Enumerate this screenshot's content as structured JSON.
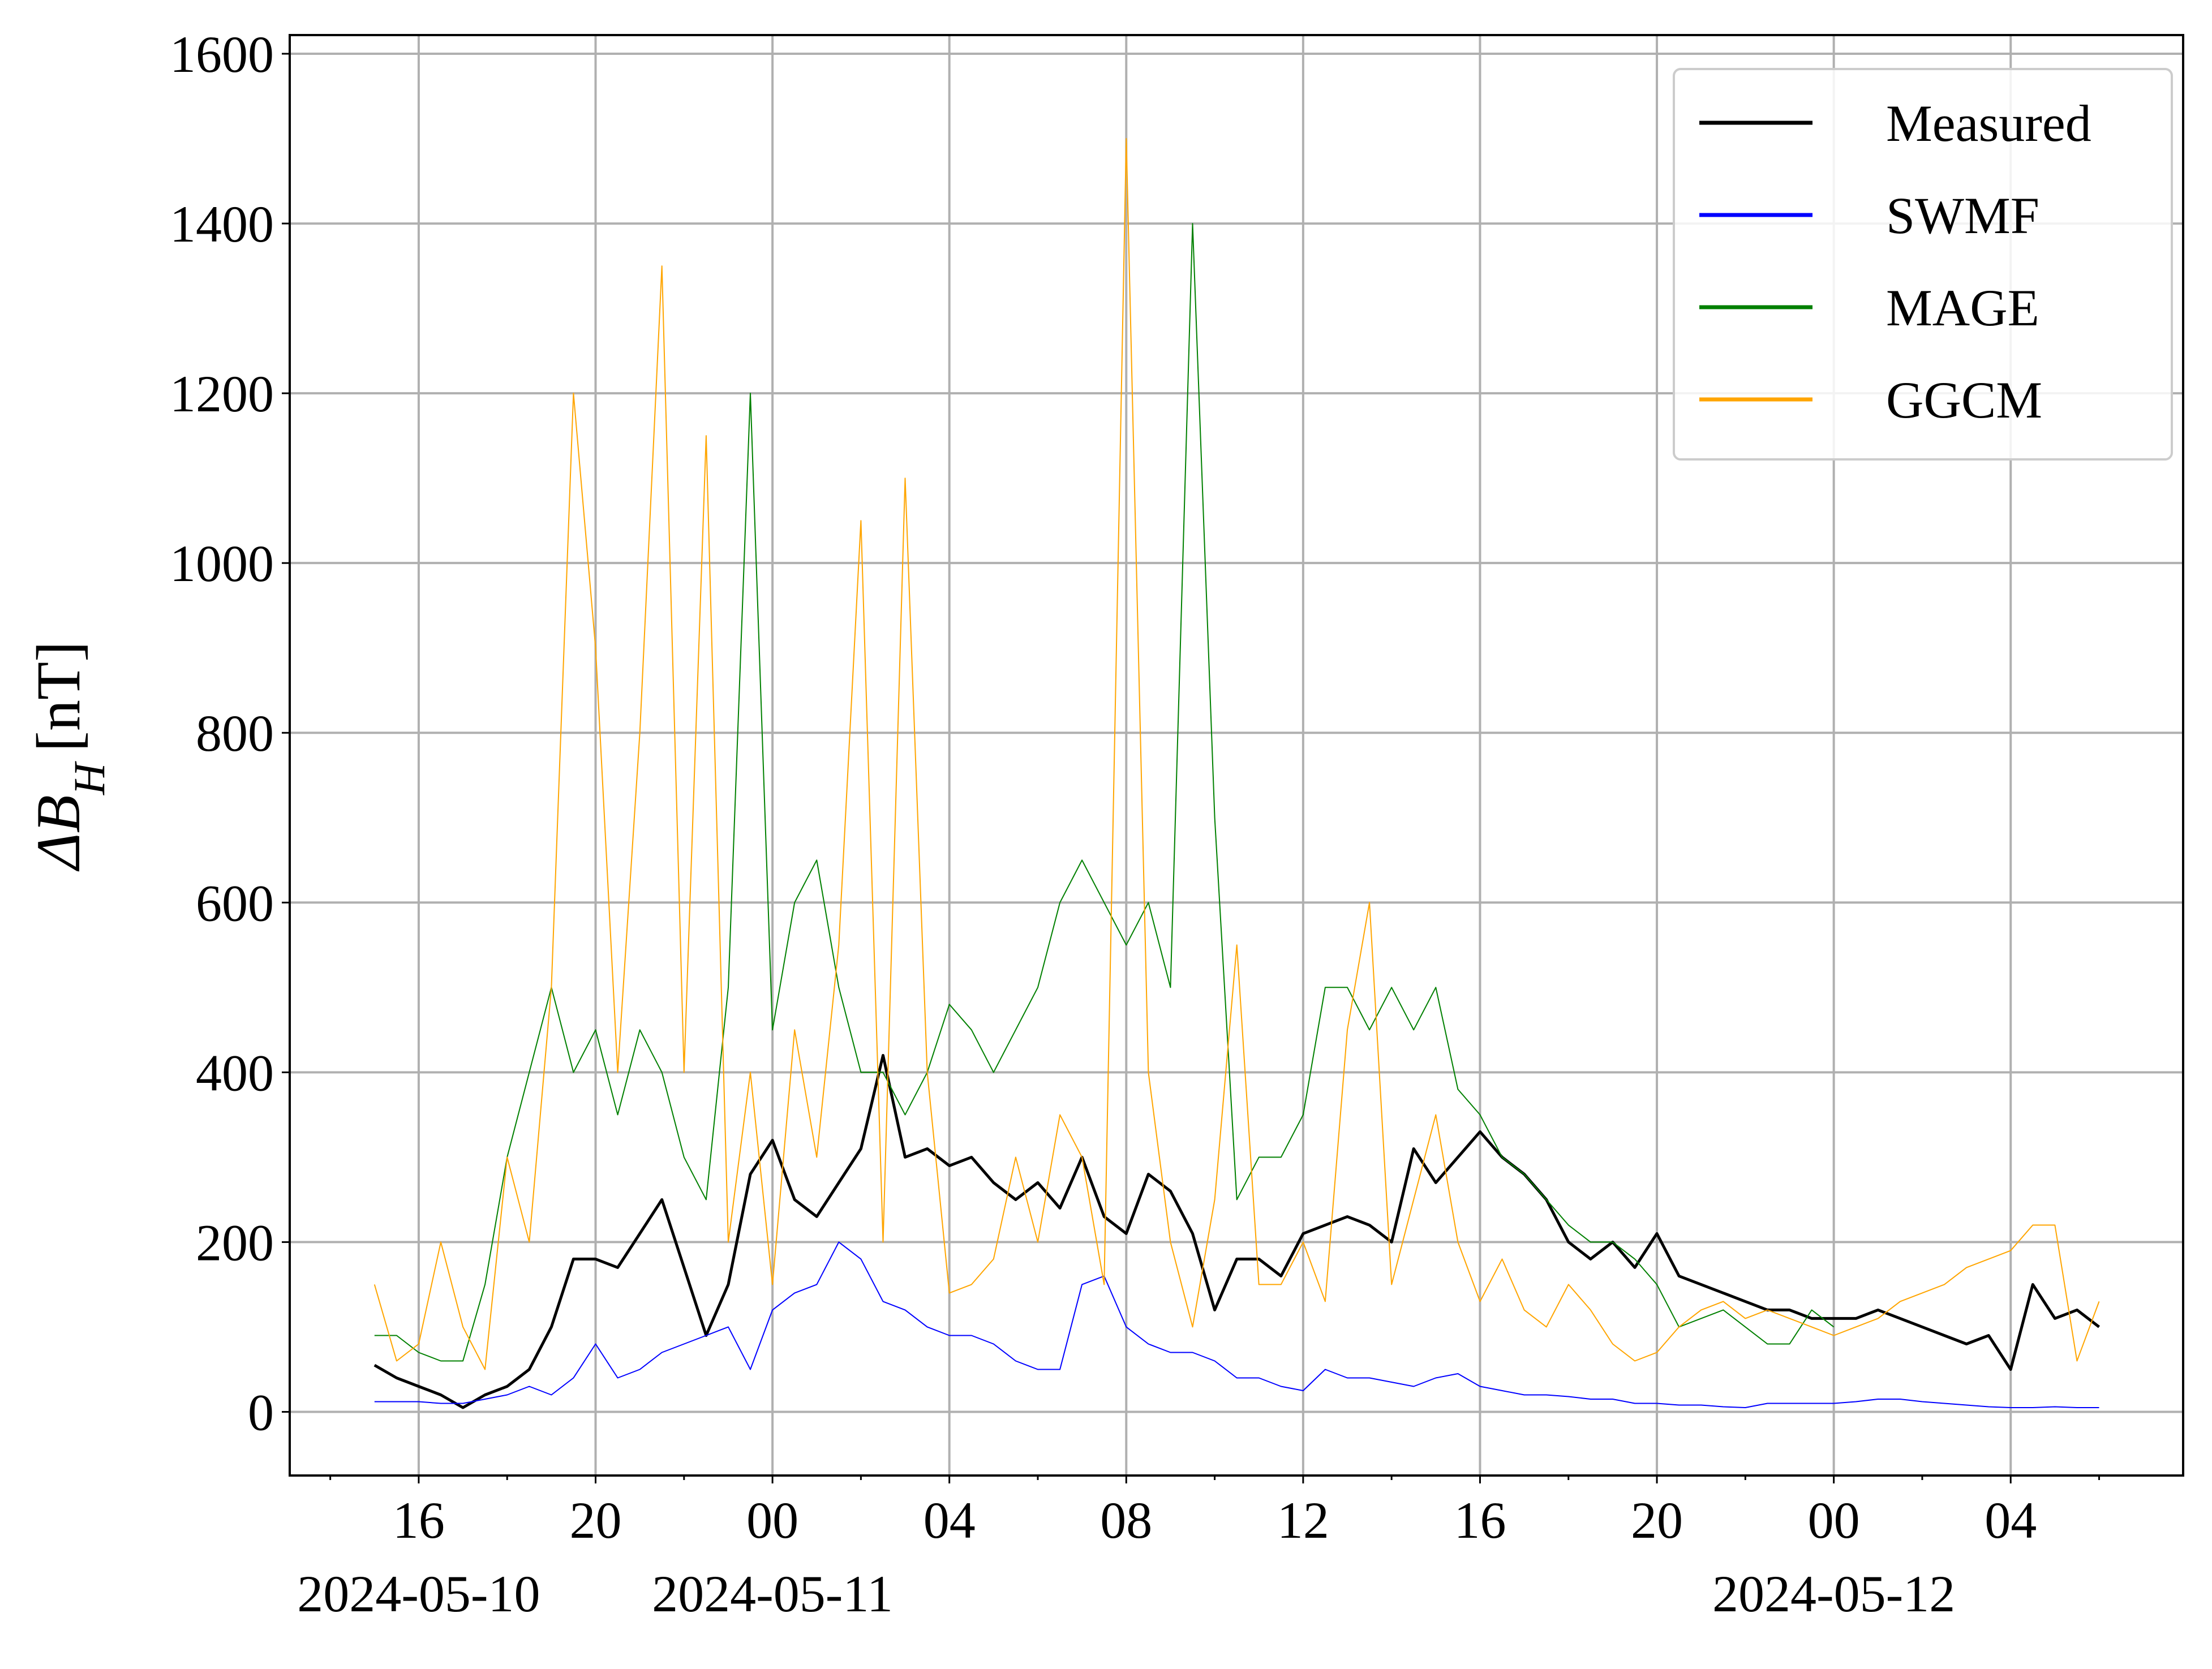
{
  "chart_data": {
    "type": "line",
    "ylabel": {
      "symbol": "ΔB",
      "subscript": "H",
      "unit": "[nT]"
    },
    "x": [
      "2024-05-10 15:00",
      "2024-05-10 15:30",
      "2024-05-10 16:00",
      "2024-05-10 16:30",
      "2024-05-10 17:00",
      "2024-05-10 17:30",
      "2024-05-10 18:00",
      "2024-05-10 18:30",
      "2024-05-10 19:00",
      "2024-05-10 19:30",
      "2024-05-10 20:00",
      "2024-05-10 20:30",
      "2024-05-10 21:00",
      "2024-05-10 21:30",
      "2024-05-10 22:00",
      "2024-05-10 22:30",
      "2024-05-10 23:00",
      "2024-05-10 23:30",
      "2024-05-11 00:00",
      "2024-05-11 00:30",
      "2024-05-11 01:00",
      "2024-05-11 01:30",
      "2024-05-11 02:00",
      "2024-05-11 02:30",
      "2024-05-11 03:00",
      "2024-05-11 03:30",
      "2024-05-11 04:00",
      "2024-05-11 04:30",
      "2024-05-11 05:00",
      "2024-05-11 05:30",
      "2024-05-11 06:00",
      "2024-05-11 06:30",
      "2024-05-11 07:00",
      "2024-05-11 07:30",
      "2024-05-11 08:00",
      "2024-05-11 08:30",
      "2024-05-11 09:00",
      "2024-05-11 09:30",
      "2024-05-11 10:00",
      "2024-05-11 10:30",
      "2024-05-11 11:00",
      "2024-05-11 11:30",
      "2024-05-11 12:00",
      "2024-05-11 12:30",
      "2024-05-11 13:00",
      "2024-05-11 13:30",
      "2024-05-11 14:00",
      "2024-05-11 14:30",
      "2024-05-11 15:00",
      "2024-05-11 15:30",
      "2024-05-11 16:00",
      "2024-05-11 16:30",
      "2024-05-11 17:00",
      "2024-05-11 17:30",
      "2024-05-11 18:00",
      "2024-05-11 18:30",
      "2024-05-11 19:00",
      "2024-05-11 19:30",
      "2024-05-11 20:00",
      "2024-05-11 20:30",
      "2024-05-11 21:00",
      "2024-05-11 21:30",
      "2024-05-11 22:00",
      "2024-05-11 22:30",
      "2024-05-11 23:00",
      "2024-05-11 23:30",
      "2024-05-12 00:00",
      "2024-05-12 00:30",
      "2024-05-12 01:00",
      "2024-05-12 01:30",
      "2024-05-12 02:00",
      "2024-05-12 02:30",
      "2024-05-12 03:00",
      "2024-05-12 03:30",
      "2024-05-12 04:00",
      "2024-05-12 04:30",
      "2024-05-12 05:00",
      "2024-05-12 05:30",
      "2024-05-12 06:00"
    ],
    "series": [
      {
        "name": "Measured",
        "color": "#000000",
        "width": 5,
        "values": [
          55,
          40,
          30,
          20,
          5,
          20,
          30,
          50,
          100,
          180,
          180,
          170,
          210,
          250,
          170,
          90,
          150,
          280,
          320,
          250,
          230,
          270,
          310,
          420,
          300,
          310,
          290,
          300,
          270,
          250,
          270,
          240,
          300,
          230,
          210,
          280,
          260,
          210,
          120,
          180,
          180,
          160,
          210,
          220,
          230,
          220,
          200,
          310,
          270,
          300,
          330,
          300,
          280,
          250,
          200,
          180,
          200,
          170,
          210,
          160,
          150,
          140,
          130,
          120,
          120,
          110,
          110,
          110,
          120,
          110,
          100,
          90,
          80,
          90,
          50,
          150,
          110,
          120,
          100
        ]
      },
      {
        "name": "SWMF",
        "color": "#0000ff",
        "width": 2,
        "values": [
          12,
          12,
          12,
          10,
          10,
          15,
          20,
          30,
          20,
          40,
          80,
          40,
          50,
          70,
          80,
          90,
          100,
          50,
          120,
          140,
          150,
          200,
          180,
          130,
          120,
          100,
          90,
          90,
          80,
          60,
          50,
          50,
          150,
          160,
          100,
          80,
          70,
          70,
          60,
          40,
          40,
          30,
          25,
          50,
          40,
          40,
          35,
          30,
          40,
          45,
          30,
          25,
          20,
          20,
          18,
          15,
          15,
          10,
          10,
          8,
          8,
          6,
          5,
          10,
          10,
          10,
          10,
          12,
          15,
          15,
          12,
          10,
          8,
          6,
          5,
          5,
          6,
          5,
          5
        ]
      },
      {
        "name": "MAGE",
        "color": "#008000",
        "width": 2,
        "values": [
          90,
          90,
          70,
          60,
          60,
          150,
          300,
          400,
          500,
          400,
          450,
          350,
          450,
          400,
          300,
          250,
          500,
          1200,
          450,
          600,
          650,
          500,
          400,
          400,
          350,
          400,
          480,
          450,
          400,
          450,
          500,
          600,
          650,
          600,
          550,
          600,
          500,
          1400,
          700,
          250,
          300,
          300,
          350,
          500,
          500,
          450,
          500,
          450,
          500,
          380,
          350,
          300,
          280,
          250,
          220,
          200,
          200,
          180,
          150,
          100,
          110,
          120,
          100,
          80,
          80,
          120,
          100,
          null,
          null,
          null,
          null,
          null,
          null,
          null,
          null,
          null,
          null,
          null,
          null
        ]
      },
      {
        "name": "GGCM",
        "color": "#ffa500",
        "width": 2,
        "values": [
          150,
          60,
          80,
          200,
          100,
          50,
          300,
          200,
          500,
          1200,
          900,
          400,
          800,
          1350,
          400,
          1150,
          200,
          400,
          150,
          450,
          300,
          550,
          1050,
          200,
          1100,
          400,
          140,
          150,
          180,
          300,
          200,
          350,
          300,
          150,
          1500,
          400,
          200,
          100,
          250,
          550,
          150,
          150,
          200,
          130,
          450,
          600,
          150,
          250,
          350,
          200,
          130,
          180,
          120,
          100,
          150,
          120,
          80,
          60,
          70,
          100,
          120,
          130,
          110,
          120,
          110,
          100,
          90,
          100,
          110,
          130,
          140,
          150,
          170,
          180,
          190,
          220,
          220,
          60,
          130
        ]
      }
    ],
    "xlim": [
      "2024-05-10 13:05",
      "2024-05-12 07:54"
    ],
    "xticks": [
      {
        "value": "2024-05-10 16:00",
        "label": "16"
      },
      {
        "value": "2024-05-10 20:00",
        "label": "20"
      },
      {
        "value": "2024-05-11 00:00",
        "label": "00"
      },
      {
        "value": "2024-05-11 04:00",
        "label": "04"
      },
      {
        "value": "2024-05-11 08:00",
        "label": "08"
      },
      {
        "value": "2024-05-11 12:00",
        "label": "12"
      },
      {
        "value": "2024-05-11 16:00",
        "label": "16"
      },
      {
        "value": "2024-05-11 20:00",
        "label": "20"
      },
      {
        "value": "2024-05-12 00:00",
        "label": "00"
      },
      {
        "value": "2024-05-12 04:00",
        "label": "04"
      }
    ],
    "xtick_dates": [
      {
        "value": "2024-05-10 16:00",
        "label": "2024-05-10"
      },
      {
        "value": "2024-05-11 00:00",
        "label": "2024-05-11"
      },
      {
        "value": "2024-05-12 00:00",
        "label": "2024-05-12"
      }
    ],
    "xminorticks": [
      "2024-05-10 14:00",
      "2024-05-10 18:00",
      "2024-05-10 22:00",
      "2024-05-11 02:00",
      "2024-05-11 06:00",
      "2024-05-11 10:00",
      "2024-05-11 14:00",
      "2024-05-11 18:00",
      "2024-05-11 22:00",
      "2024-05-12 02:00",
      "2024-05-12 06:00"
    ],
    "ylim": [
      -75,
      1622
    ],
    "yticks": [
      0,
      200,
      400,
      600,
      800,
      1000,
      1200,
      1400,
      1600
    ],
    "grid": true,
    "legend": "upper right"
  }
}
